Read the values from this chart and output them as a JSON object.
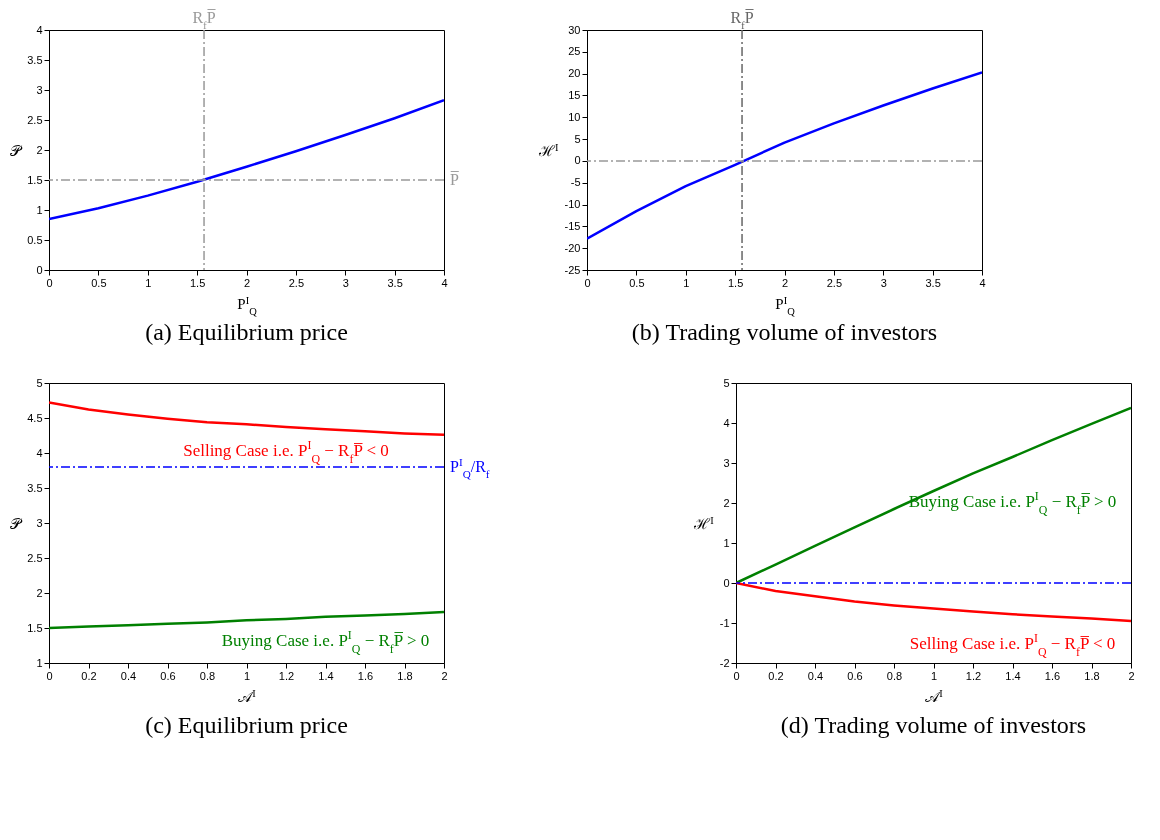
{
  "chart_data": [
    {
      "type": "line",
      "title": "(a)  Equilibrium price",
      "xlabel": "P$^{I}$$_{Q}$",
      "ylabel": "𝒫",
      "xlim": [
        0,
        4
      ],
      "ylim": [
        0,
        4
      ],
      "xticks": [
        0,
        0.5,
        1,
        1.5,
        2,
        2.5,
        3,
        3.5,
        4
      ],
      "yticks": [
        0,
        0.5,
        1,
        1.5,
        2,
        2.5,
        3,
        3.5,
        4
      ],
      "x": [
        0,
        0.5,
        1,
        1.5,
        2,
        2.5,
        3,
        3.5,
        4
      ],
      "series": [
        {
          "color": "#0000ff",
          "values": [
            0.85,
            1.03,
            1.24,
            1.47,
            1.72,
            1.98,
            2.25,
            2.53,
            2.83
          ]
        }
      ],
      "ref_lines": [
        {
          "axis": "x",
          "value": 1.57,
          "label": "R$_{f}$P̅",
          "color": "#999999",
          "line_style": "dashed"
        },
        {
          "axis": "y",
          "value": 1.5,
          "label": "P̅",
          "color": "#999999",
          "line_style": "dashed"
        }
      ]
    },
    {
      "type": "line",
      "title": "(b)  Trading volume of investors",
      "xlabel": "P$^{I}$$_{Q}$",
      "ylabel": "ℋ$^{I}$",
      "xlim": [
        0,
        4
      ],
      "ylim": [
        -25,
        30
      ],
      "xticks": [
        0,
        0.5,
        1,
        1.5,
        2,
        2.5,
        3,
        3.5,
        4
      ],
      "yticks": [
        -25,
        -20,
        -15,
        -10,
        -5,
        0,
        5,
        10,
        15,
        20,
        25,
        30
      ],
      "x": [
        0,
        0.5,
        1,
        1.5,
        2,
        2.5,
        3,
        3.5,
        4
      ],
      "series": [
        {
          "color": "#0000ff",
          "values": [
            -17.8,
            -11.5,
            -5.8,
            -0.9,
            4.2,
            8.6,
            12.7,
            16.6,
            20.3
          ]
        }
      ],
      "ref_lines": [
        {
          "axis": "x",
          "value": 1.57,
          "label": "R$_{f}$P̅",
          "color": "#666666",
          "line_style": "dashed"
        },
        {
          "axis": "y",
          "value": 0,
          "color": "#999999",
          "line_style": "dashed"
        }
      ]
    },
    {
      "type": "line",
      "title": "(c)  Equilibrium price",
      "xlabel": "𝒜$^{I}$",
      "ylabel": "𝒫",
      "xlim": [
        0,
        2
      ],
      "ylim": [
        1,
        5
      ],
      "xticks": [
        0,
        0.2,
        0.4,
        0.6,
        0.8,
        1,
        1.2,
        1.4,
        1.6,
        1.8,
        2
      ],
      "yticks": [
        1,
        1.5,
        2,
        2.5,
        3,
        3.5,
        4,
        4.5,
        5
      ],
      "x": [
        0,
        0.2,
        0.4,
        0.6,
        0.8,
        1,
        1.2,
        1.4,
        1.6,
        1.8,
        2
      ],
      "series": [
        {
          "name": "Selling Case i.e. P$^{I}$$_{Q}$ − R$_{f}$P̅ < 0",
          "color": "#ff0000",
          "values": [
            4.72,
            4.62,
            4.55,
            4.49,
            4.44,
            4.41,
            4.37,
            4.34,
            4.31,
            4.28,
            4.26
          ]
        },
        {
          "name": "Buying Case i.e. P$^{I}$$_{Q}$ − R$_{f}$P̅ > 0",
          "color": "#008000",
          "values": [
            1.5,
            1.52,
            1.54,
            1.56,
            1.58,
            1.61,
            1.63,
            1.66,
            1.68,
            1.7,
            1.73
          ]
        }
      ],
      "ref_lines": [
        {
          "axis": "y",
          "value": 3.8,
          "label": "P$^{I}$$_{Q}$/R$_{f}$",
          "color": "#0000ff",
          "line_style": "dashed"
        }
      ]
    },
    {
      "type": "line",
      "title": "(d)  Trading volume of investors",
      "xlabel": "𝒜$^{I}$",
      "ylabel": "ℋ$^{I}$",
      "xlim": [
        0,
        2
      ],
      "ylim": [
        -2,
        5
      ],
      "xticks": [
        0,
        0.2,
        0.4,
        0.6,
        0.8,
        1,
        1.2,
        1.4,
        1.6,
        1.8,
        2
      ],
      "yticks": [
        -2,
        -1,
        0,
        1,
        2,
        3,
        4,
        5
      ],
      "x": [
        0,
        0.2,
        0.4,
        0.6,
        0.8,
        1,
        1.2,
        1.4,
        1.6,
        1.8,
        2
      ],
      "series": [
        {
          "name": "Buying Case i.e. P$^{I}$$_{Q}$ − R$_{f}$P̅ > 0",
          "color": "#008000",
          "values": [
            0,
            0.46,
            0.93,
            1.39,
            1.85,
            2.3,
            2.74,
            3.15,
            3.57,
            3.98,
            4.38
          ]
        },
        {
          "name": "Selling Case i.e. P$^{I}$$_{Q}$ − R$_{f}$P̅ < 0",
          "color": "#ff0000",
          "values": [
            0,
            -0.2,
            -0.33,
            -0.46,
            -0.56,
            -0.64,
            -0.71,
            -0.78,
            -0.84,
            -0.89,
            -0.95
          ]
        }
      ],
      "ref_lines": [
        {
          "axis": "y",
          "value": 0,
          "color": "#0000ff",
          "line_style": "dashed"
        }
      ]
    }
  ]
}
